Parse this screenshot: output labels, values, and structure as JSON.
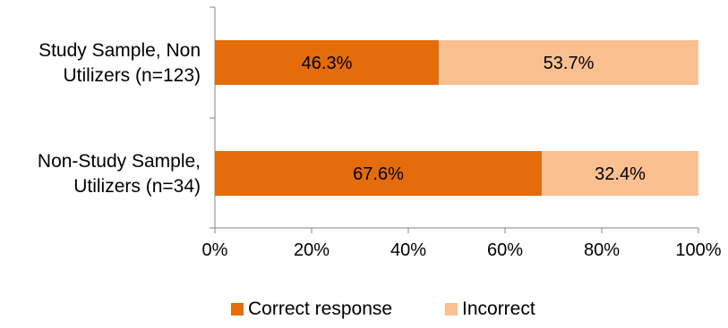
{
  "chart_data": {
    "type": "bar",
    "orientation": "horizontal",
    "stacked": true,
    "title": "",
    "xlabel": "",
    "ylabel": "",
    "categories": [
      [
        "Study Sample, Non",
        "Utilizers (n=123)"
      ],
      [
        "Non-Study Sample,",
        "Utilizers (n=34)"
      ]
    ],
    "series": [
      {
        "name": "Correct response",
        "color": "#E46C0A",
        "values": [
          46.3,
          67.6
        ],
        "labels": [
          "46.3%",
          "67.6%"
        ]
      },
      {
        "name": "Incorrect",
        "color": "#FAC090",
        "values": [
          53.7,
          32.4
        ],
        "labels": [
          "53.7%",
          "32.4%"
        ]
      }
    ],
    "xlim": [
      0,
      100
    ],
    "xticks": [
      0,
      20,
      40,
      60,
      80,
      100
    ],
    "xtick_labels": [
      "0%",
      "20%",
      "40%",
      "60%",
      "80%",
      "100%"
    ],
    "grid": false,
    "legend_position": "bottom",
    "axis_color": "#868686"
  }
}
